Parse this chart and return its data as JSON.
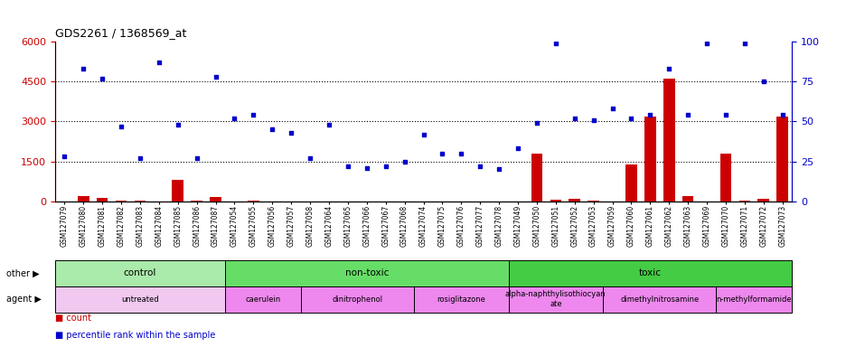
{
  "title": "GDS2261 / 1368569_at",
  "samples": [
    "GSM127079",
    "GSM127080",
    "GSM127081",
    "GSM127082",
    "GSM127083",
    "GSM127084",
    "GSM127085",
    "GSM127086",
    "GSM127087",
    "GSM127054",
    "GSM127055",
    "GSM127056",
    "GSM127057",
    "GSM127058",
    "GSM127064",
    "GSM127065",
    "GSM127066",
    "GSM127067",
    "GSM127068",
    "GSM127074",
    "GSM127075",
    "GSM127076",
    "GSM127077",
    "GSM127078",
    "GSM127049",
    "GSM127050",
    "GSM127051",
    "GSM127052",
    "GSM127053",
    "GSM127059",
    "GSM127060",
    "GSM127061",
    "GSM127062",
    "GSM127063",
    "GSM127069",
    "GSM127070",
    "GSM127071",
    "GSM127072",
    "GSM127073"
  ],
  "count_values": [
    5,
    200,
    120,
    20,
    10,
    5,
    800,
    15,
    150,
    5,
    10,
    5,
    5,
    5,
    5,
    5,
    5,
    5,
    5,
    5,
    5,
    5,
    5,
    5,
    5,
    1800,
    50,
    100,
    10,
    5,
    1400,
    3200,
    4600,
    200,
    5,
    1800,
    10,
    80,
    3200
  ],
  "percentile_values": [
    28,
    83,
    77,
    47,
    27,
    87,
    48,
    27,
    78,
    52,
    54,
    45,
    43,
    27,
    48,
    22,
    21,
    22,
    25,
    42,
    30,
    30,
    22,
    20,
    33,
    49,
    99,
    52,
    51,
    58,
    52,
    54,
    83,
    54,
    99,
    54,
    99,
    75,
    54
  ],
  "ylim_left": [
    0,
    6000
  ],
  "ylim_right": [
    0,
    100
  ],
  "yticks_left": [
    0,
    1500,
    3000,
    4500,
    6000
  ],
  "yticks_right": [
    0,
    25,
    50,
    75,
    100
  ],
  "bar_color": "#cc0000",
  "scatter_color": "#0000cc",
  "groups_other": [
    {
      "label": "control",
      "start": 0,
      "end": 9,
      "color": "#aaeaaa"
    },
    {
      "label": "non-toxic",
      "start": 9,
      "end": 24,
      "color": "#66dd66"
    },
    {
      "label": "toxic",
      "start": 24,
      "end": 39,
      "color": "#44cc44"
    }
  ],
  "groups_agent": [
    {
      "label": "untreated",
      "start": 0,
      "end": 9,
      "color": "#f0c8f0"
    },
    {
      "label": "caerulein",
      "start": 9,
      "end": 13,
      "color": "#ee88ee"
    },
    {
      "label": "dinitrophenol",
      "start": 13,
      "end": 19,
      "color": "#ee88ee"
    },
    {
      "label": "rosiglitazone",
      "start": 19,
      "end": 24,
      "color": "#ee88ee"
    },
    {
      "label": "alpha-naphthylisothiocyan\nate",
      "start": 24,
      "end": 29,
      "color": "#ee88ee"
    },
    {
      "label": "dimethylnitrosamine",
      "start": 29,
      "end": 35,
      "color": "#ee88ee"
    },
    {
      "label": "n-methylformamide",
      "start": 35,
      "end": 39,
      "color": "#ee88ee"
    }
  ],
  "other_label": "other",
  "agent_label": "agent",
  "legend_count_label": "count",
  "legend_percentile_label": "percentile rank within the sample",
  "xtick_bg": "#d8d8d8"
}
